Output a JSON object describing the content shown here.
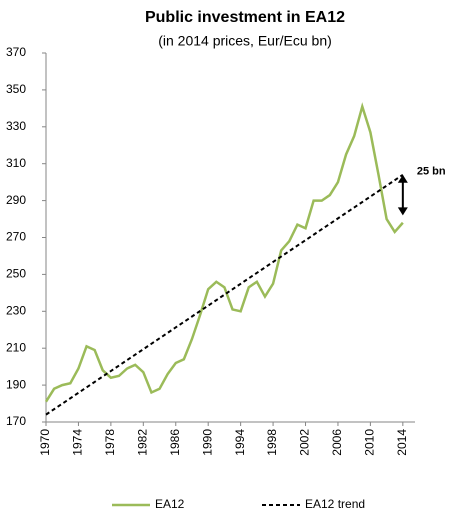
{
  "chart_data": {
    "type": "line",
    "title": "Public investment in EA12",
    "subtitle": "(in 2014 prices, Eur/Ecu bn)",
    "xlim": [
      1970,
      2015.5
    ],
    "xticks": [
      1970,
      1974,
      1978,
      1982,
      1986,
      1990,
      1994,
      1998,
      2002,
      2006,
      2010,
      2014
    ],
    "ylim": [
      170,
      370
    ],
    "yticks": [
      170,
      190,
      210,
      230,
      250,
      270,
      290,
      310,
      330,
      350,
      370
    ],
    "series": [
      {
        "name": "EA12",
        "color": "#9bbb59",
        "dash": false,
        "x": [
          1970,
          1971,
          1972,
          1973,
          1974,
          1975,
          1976,
          1977,
          1978,
          1979,
          1980,
          1981,
          1982,
          1983,
          1984,
          1985,
          1986,
          1987,
          1988,
          1989,
          1990,
          1991,
          1992,
          1993,
          1994,
          1995,
          1996,
          1997,
          1998,
          1999,
          2000,
          2001,
          2002,
          2003,
          2004,
          2005,
          2006,
          2007,
          2008,
          2009,
          2010,
          2011,
          2012,
          2013,
          2014
        ],
        "values": [
          181,
          188,
          190,
          191,
          199,
          211,
          209,
          198,
          194,
          195,
          199,
          201,
          197,
          186,
          188,
          196,
          202,
          204,
          215,
          228,
          242,
          246,
          243,
          231,
          230,
          243,
          246,
          238,
          245,
          263,
          268,
          277,
          275,
          290,
          290,
          293,
          300,
          315,
          325,
          341,
          327,
          304,
          280,
          273,
          278
        ]
      },
      {
        "name": "EA12 trend",
        "color": "#000000",
        "dash": true,
        "x": [
          1970,
          2014
        ],
        "values": [
          174,
          304
        ]
      }
    ],
    "annotation": {
      "text": "25 bn",
      "x": 2014,
      "y1": 282,
      "y2": 304
    }
  }
}
